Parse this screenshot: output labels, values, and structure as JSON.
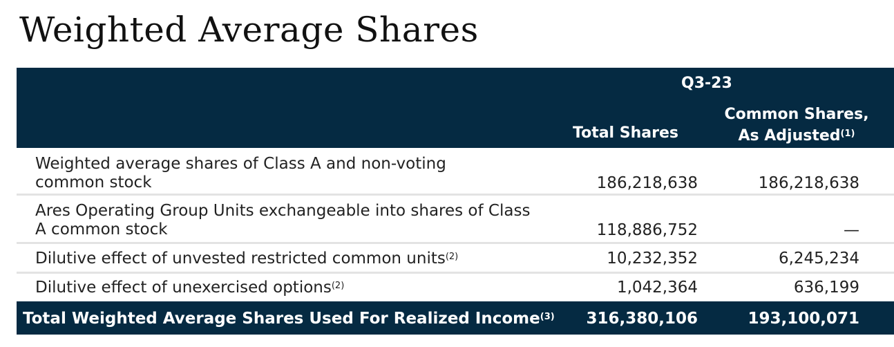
{
  "title": "Weighted Average Shares",
  "header": {
    "period": "Q3-23",
    "col1": "Total Shares",
    "col2_line1": "Common Shares,",
    "col2_line2": "As Adjusted",
    "col2_note": "(1)"
  },
  "rows": [
    {
      "label": "Weighted average shares of Class A and non-voting common stock",
      "note": "",
      "total_shares": "186,218,638",
      "adjusted": "186,218,638"
    },
    {
      "label": "Ares Operating Group Units exchangeable into shares of Class A common stock",
      "note": "",
      "total_shares": "118,886,752",
      "adjusted": "—"
    },
    {
      "label": "Dilutive effect of unvested restricted common units",
      "note": "(2)",
      "total_shares": "10,232,352",
      "adjusted": "6,245,234"
    },
    {
      "label": "Dilutive effect of unexercised options",
      "note": "(2)",
      "total_shares": "1,042,364",
      "adjusted": "636,199"
    }
  ],
  "total": {
    "label": "Total Weighted Average Shares Used For Realized Income",
    "note": "(3)",
    "total_shares": "316,380,106",
    "adjusted": "193,100,071"
  }
}
